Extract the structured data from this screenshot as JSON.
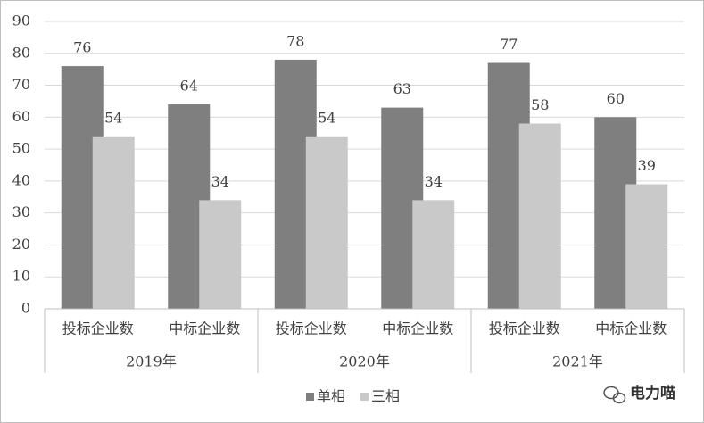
{
  "chart_data": {
    "type": "bar",
    "categories": [
      "投标企业数",
      "中标企业数",
      "投标企业数",
      "中标企业数",
      "投标企业数",
      "中标企业数"
    ],
    "groups": [
      "2019年",
      "2020年",
      "2021年"
    ],
    "series": [
      {
        "name": "单相",
        "color": "#7f7f7f",
        "values": [
          76,
          64,
          78,
          63,
          77,
          60
        ]
      },
      {
        "name": "三相",
        "color": "#c9c9c9",
        "values": [
          54,
          34,
          54,
          34,
          58,
          39
        ]
      }
    ],
    "ylim": [
      0,
      90
    ],
    "yticks": [
      0,
      10,
      20,
      30,
      40,
      50,
      60,
      70,
      80,
      90
    ],
    "grid": true,
    "legend": "bottom",
    "watermark": "电力喵"
  }
}
